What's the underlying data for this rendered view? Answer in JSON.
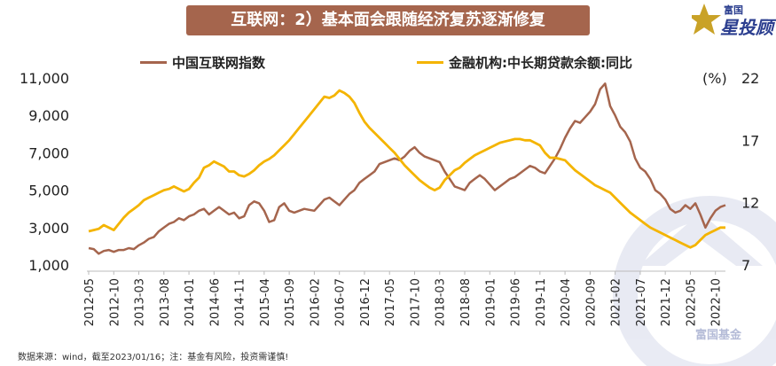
{
  "title": "互联网：2）基本面会跟随经济复苏逐渐修复",
  "brand": {
    "top": "富国",
    "main": "星投顾",
    "watermark": "富国基金"
  },
  "footnote": "数据来源：wind，截至2023/01/16；注：基金有风险，投资需谨慎!",
  "colors": {
    "banner": "#a5654d",
    "series1": "#a5654d",
    "series2": "#f4b400",
    "brand": "#2b3e8f"
  },
  "chart_data": {
    "type": "line",
    "left_axis": {
      "ylim": [
        1000,
        11000
      ],
      "ticks": [
        "11,000",
        "9,000",
        "7,000",
        "5,000",
        "3,000",
        "1,000"
      ],
      "tick_values": [
        11000,
        9000,
        7000,
        5000,
        3000,
        1000
      ]
    },
    "right_axis": {
      "unit": "(%)",
      "ylim": [
        7,
        22
      ],
      "ticks": [
        "22",
        "17",
        "12",
        "7"
      ],
      "tick_values": [
        22,
        17,
        12,
        7
      ]
    },
    "x_range": [
      0,
      127
    ],
    "categories": [
      "2012-05",
      "2012-10",
      "2013-03",
      "2013-08",
      "2014-01",
      "2014-06",
      "2014-11",
      "2015-04",
      "2015-09",
      "2016-02",
      "2016-07",
      "2016-12",
      "2017-05",
      "2017-10",
      "2018-03",
      "2018-08",
      "2019-01",
      "2019-06",
      "2019-11",
      "2020-04",
      "2020-09",
      "2021-02",
      "2021-07",
      "2021-12",
      "2022-05",
      "2022-10"
    ],
    "category_x": [
      0,
      5,
      10,
      15,
      20,
      25,
      30,
      35,
      40,
      45,
      50,
      55,
      60,
      65,
      70,
      75,
      80,
      85,
      90,
      95,
      100,
      105,
      110,
      115,
      120,
      125
    ],
    "series": [
      {
        "name": "中国互联网指数",
        "axis": "left",
        "x": [
          0,
          1,
          2,
          3,
          4,
          5,
          6,
          7,
          8,
          9,
          10,
          11,
          12,
          13,
          14,
          15,
          16,
          17,
          18,
          19,
          20,
          21,
          22,
          23,
          24,
          25,
          26,
          27,
          28,
          29,
          30,
          31,
          32,
          33,
          34,
          35,
          36,
          37,
          38,
          39,
          40,
          41,
          42,
          43,
          44,
          45,
          46,
          47,
          48,
          49,
          50,
          51,
          52,
          53,
          54,
          55,
          56,
          57,
          58,
          59,
          60,
          61,
          62,
          63,
          64,
          65,
          66,
          67,
          68,
          69,
          70,
          71,
          72,
          73,
          74,
          75,
          76,
          77,
          78,
          79,
          80,
          81,
          82,
          83,
          84,
          85,
          86,
          87,
          88,
          89,
          90,
          91,
          92,
          93,
          94,
          95,
          96,
          97,
          98,
          99,
          100,
          101,
          102,
          103,
          104,
          105,
          106,
          107,
          108,
          109,
          110,
          111,
          112,
          113,
          114,
          115,
          116,
          117,
          118,
          119,
          120,
          121,
          122,
          123,
          124,
          125,
          126,
          127
        ],
        "values": [
          1900,
          1850,
          1600,
          1750,
          1800,
          1700,
          1800,
          1800,
          1900,
          1850,
          2050,
          2200,
          2400,
          2500,
          2800,
          3000,
          3200,
          3300,
          3500,
          3400,
          3600,
          3700,
          3900,
          4000,
          3700,
          3900,
          4100,
          3900,
          3700,
          3800,
          3500,
          3600,
          4200,
          4400,
          4300,
          3900,
          3300,
          3400,
          4100,
          4300,
          3900,
          3800,
          3900,
          4000,
          3950,
          3900,
          4200,
          4500,
          4600,
          4400,
          4200,
          4500,
          4800,
          5000,
          5400,
          5600,
          5800,
          6000,
          6400,
          6500,
          6600,
          6700,
          6600,
          6800,
          7100,
          7300,
          7000,
          6800,
          6700,
          6600,
          6500,
          6000,
          5600,
          5200,
          5100,
          5000,
          5400,
          5600,
          5800,
          5600,
          5300,
          5000,
          5200,
          5400,
          5600,
          5700,
          5900,
          6100,
          6300,
          6200,
          6000,
          5900,
          6300,
          6700,
          7200,
          7800,
          8300,
          8700,
          8600,
          8900,
          9200,
          9600,
          10400,
          10700,
          9500,
          9000,
          8400,
          8100,
          7600,
          6700,
          6200,
          6000,
          5600,
          5000,
          4800,
          4500,
          4000,
          3800,
          3900,
          4200,
          4000,
          4300,
          3700,
          3000,
          3500,
          3900,
          4100,
          4200
        ]
      },
      {
        "name": "金融机构:中长期贷款余额:同比",
        "axis": "right",
        "x": [
          0,
          1,
          2,
          3,
          4,
          5,
          6,
          7,
          8,
          9,
          10,
          11,
          12,
          13,
          14,
          15,
          16,
          17,
          18,
          19,
          20,
          21,
          22,
          23,
          24,
          25,
          26,
          27,
          28,
          29,
          30,
          31,
          32,
          33,
          34,
          35,
          36,
          37,
          38,
          39,
          40,
          41,
          42,
          43,
          44,
          45,
          46,
          47,
          48,
          49,
          50,
          51,
          52,
          53,
          54,
          55,
          56,
          57,
          58,
          59,
          60,
          61,
          62,
          63,
          64,
          65,
          66,
          67,
          68,
          69,
          70,
          71,
          72,
          73,
          74,
          75,
          76,
          77,
          78,
          79,
          80,
          81,
          82,
          83,
          84,
          85,
          86,
          87,
          88,
          89,
          90,
          91,
          92,
          93,
          94,
          95,
          96,
          97,
          98,
          99,
          100,
          101,
          102,
          103,
          104,
          105,
          106,
          107,
          108,
          109,
          110,
          111,
          112,
          113,
          114,
          115,
          116,
          117,
          118,
          119,
          120,
          121,
          122,
          123,
          124,
          125,
          126,
          127
        ],
        "values": [
          9.7,
          9.8,
          9.9,
          10.2,
          10.0,
          9.8,
          10.3,
          10.8,
          11.2,
          11.5,
          11.8,
          12.2,
          12.4,
          12.6,
          12.8,
          13.0,
          13.1,
          13.3,
          13.1,
          12.9,
          13.1,
          13.6,
          14.0,
          14.8,
          15.0,
          15.3,
          15.1,
          14.9,
          14.5,
          14.5,
          14.2,
          14.1,
          14.3,
          14.6,
          15.0,
          15.3,
          15.5,
          15.8,
          16.2,
          16.6,
          17.0,
          17.5,
          18.0,
          18.5,
          19.0,
          19.5,
          20.0,
          20.5,
          20.4,
          20.6,
          21.0,
          20.8,
          20.5,
          20.0,
          19.2,
          18.5,
          18.0,
          17.6,
          17.2,
          16.8,
          16.4,
          16.0,
          15.5,
          15.0,
          14.6,
          14.2,
          13.8,
          13.5,
          13.2,
          13.0,
          13.2,
          13.8,
          14.2,
          14.6,
          14.8,
          15.2,
          15.5,
          15.8,
          16.0,
          16.2,
          16.4,
          16.6,
          16.8,
          16.9,
          17.0,
          17.1,
          17.1,
          17.0,
          17.0,
          16.8,
          16.6,
          16.0,
          15.6,
          15.6,
          15.5,
          15.4,
          15.0,
          14.6,
          14.3,
          14.0,
          13.7,
          13.4,
          13.2,
          13.0,
          12.8,
          12.4,
          12.0,
          11.6,
          11.2,
          10.9,
          10.6,
          10.3,
          10.0,
          9.8,
          9.6,
          9.4,
          9.2,
          9.0,
          8.8,
          8.6,
          8.4,
          8.6,
          9.0,
          9.4,
          9.6,
          9.8,
          10.0,
          10.0
        ]
      }
    ]
  }
}
